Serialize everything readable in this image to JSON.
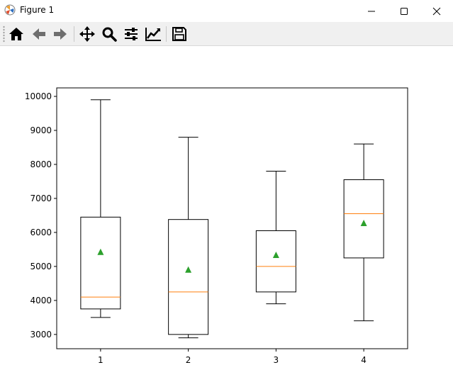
{
  "window": {
    "title": "Figure 1",
    "controls": [
      "minimize",
      "maximize",
      "close"
    ]
  },
  "toolbar": {
    "icons": [
      "home-icon",
      "back-arrow-icon",
      "forward-arrow-icon",
      "pan-icon",
      "zoom-icon",
      "configure-subplots-icon",
      "edit-axis-icon",
      "save-icon"
    ]
  },
  "colors": {
    "box": "#000000",
    "median": "#ff7f0e",
    "mean": "#2ca02c",
    "toolbar_bg": "#f0f0f0"
  },
  "chart_data": {
    "type": "boxplot",
    "categories": [
      "1",
      "2",
      "3",
      "4"
    ],
    "boxes": [
      {
        "whisker_low": 3500,
        "q1": 3750,
        "median": 4100,
        "q3": 6450,
        "whisker_high": 9900,
        "mean": 5420
      },
      {
        "whisker_low": 2900,
        "q1": 3000,
        "median": 4250,
        "q3": 6380,
        "whisker_high": 8800,
        "mean": 4900
      },
      {
        "whisker_low": 3900,
        "q1": 4250,
        "median": 5000,
        "q3": 6050,
        "whisker_high": 7800,
        "mean": 5330
      },
      {
        "whisker_low": 3400,
        "q1": 5250,
        "median": 6550,
        "q3": 7550,
        "whisker_high": 8600,
        "mean": 6270
      }
    ],
    "yticks": [
      "3000",
      "4000",
      "5000",
      "6000",
      "7000",
      "8000",
      "9000",
      "10000"
    ],
    "ylim": [
      2580,
      10250
    ],
    "xlim": [
      0.5,
      4.5
    ],
    "grid": false,
    "showmeans": true
  }
}
